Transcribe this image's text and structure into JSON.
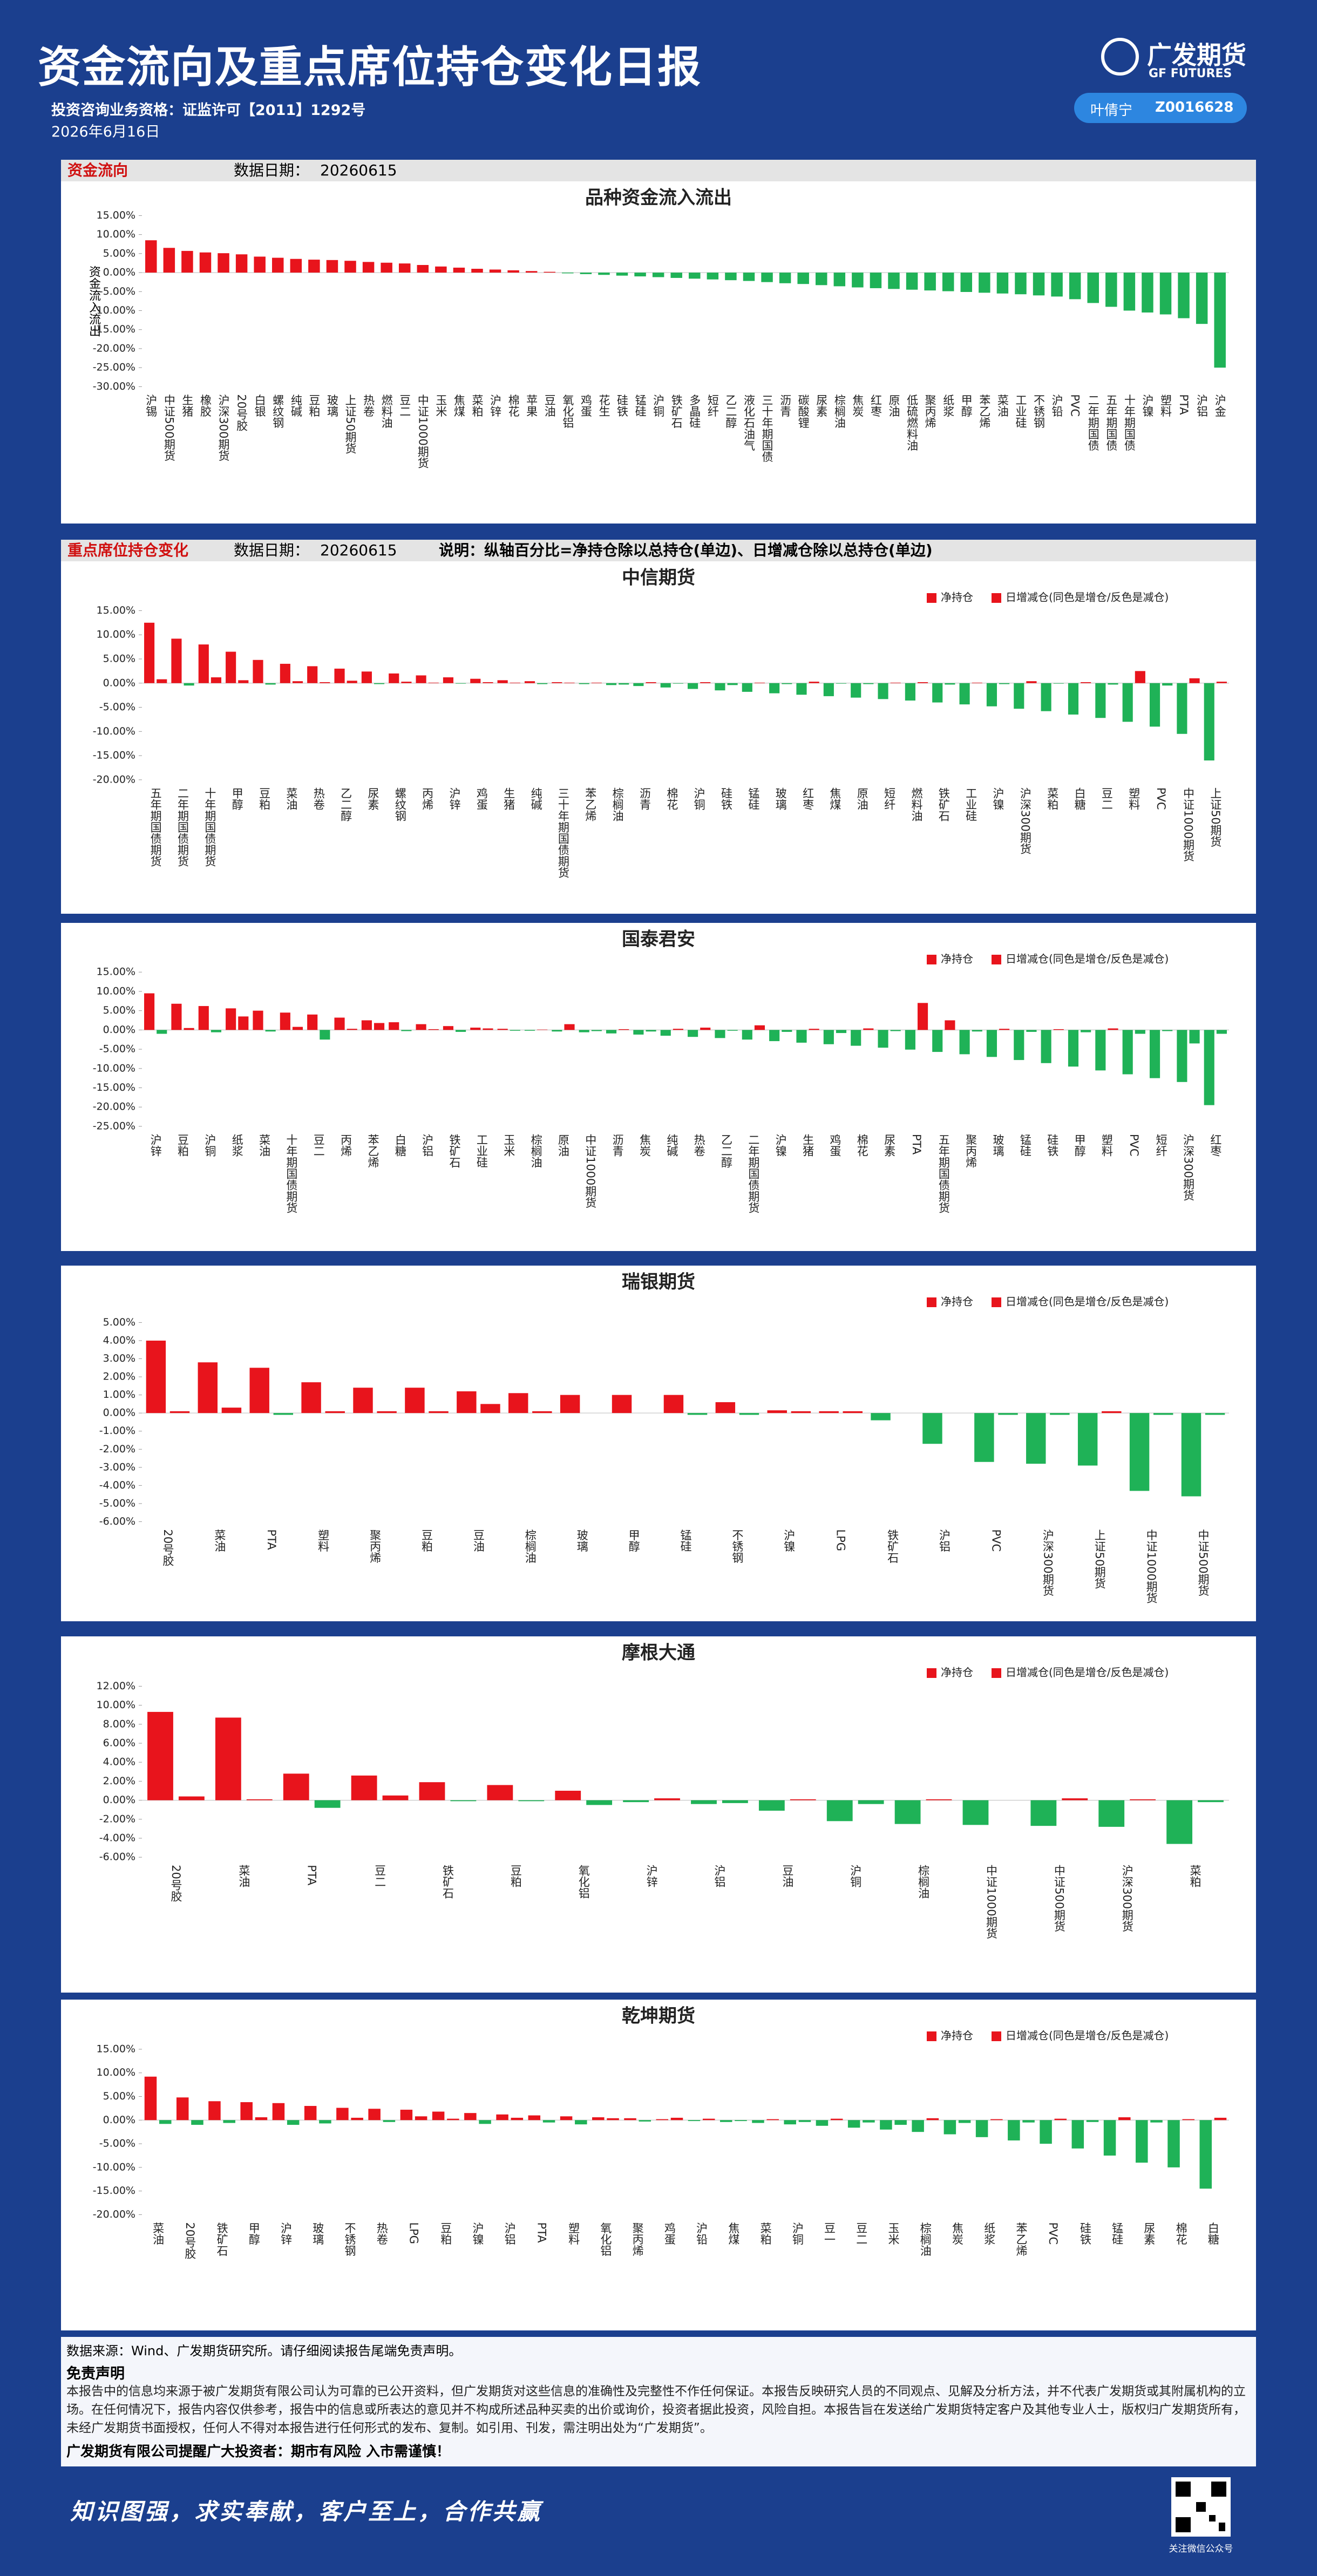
{
  "header": {
    "title": "资金流向及重点席位持仓变化日报",
    "license": "投资咨询业务资格：证监许可【2011】1292号",
    "date": "2026年6月16日",
    "logo_cn": "广发期货",
    "logo_en": "GF FUTURES",
    "analyst": "叶倩宁",
    "analyst_id": "Z0016628"
  },
  "sections": [
    {
      "heading": "资金流向",
      "date_label": "数据日期：",
      "date": "20260615"
    },
    {
      "heading": "重点席位持仓变化",
      "date_label": "数据日期：",
      "date": "20260615",
      "note": "说明：纵轴百分比=净持仓除以总持仓(单边)、日增减仓除以总持仓(单边)"
    }
  ],
  "chart_data": [
    {
      "type": "bar",
      "title": "品种资金流入流出",
      "ylabel": "资金流入流出",
      "categories": [
        "沪锡",
        "中证500期货",
        "生猪",
        "橡胶",
        "沪深300期货",
        "20号胶",
        "白银",
        "螺纹钢",
        "纯碱",
        "豆粕",
        "玻璃",
        "上证50期货",
        "热卷",
        "燃料油",
        "豆二",
        "中证1000期货",
        "玉米",
        "焦煤",
        "菜粕",
        "沪锌",
        "棉花",
        "苹果",
        "豆油",
        "氧化铝",
        "鸡蛋",
        "花生",
        "硅铁",
        "锰硅",
        "沪铜",
        "铁矿石",
        "多晶硅",
        "短纤",
        "乙二醇",
        "液化石油气",
        "三十年期国债",
        "沥青",
        "碳酸锂",
        "尿素",
        "棕榈油",
        "焦炭",
        "红枣",
        "原油",
        "低硫燃料油",
        "聚丙烯",
        "纸浆",
        "甲醇",
        "苯乙烯",
        "菜油",
        "工业硅",
        "不锈钢",
        "沪铅",
        "PVC",
        "二年期国债",
        "五年期国债",
        "十年期国债",
        "沪镍",
        "塑料",
        "PTA",
        "沪铝",
        "沪金"
      ],
      "values": [
        8.5,
        6.5,
        5.7,
        5.3,
        5.1,
        4.8,
        4.2,
        3.9,
        3.6,
        3.4,
        3.3,
        3.1,
        2.8,
        2.6,
        2.4,
        2.0,
        1.6,
        1.3,
        1.0,
        0.8,
        0.6,
        0.4,
        0.2,
        -0.2,
        -0.4,
        -0.6,
        -0.8,
        -1.0,
        -1.2,
        -1.4,
        -1.6,
        -1.8,
        -2.0,
        -2.2,
        -2.5,
        -2.8,
        -3.0,
        -3.3,
        -3.6,
        -3.9,
        -4.1,
        -4.3,
        -4.5,
        -4.7,
        -4.9,
        -5.1,
        -5.3,
        -5.5,
        -5.7,
        -6.0,
        -6.3,
        -7.0,
        -8.0,
        -9.0,
        -10.0,
        -10.5,
        -11.0,
        -12.0,
        -13.5,
        -25.0
      ],
      "ylim": [
        -30,
        15
      ],
      "yticks": [
        {
          "value": -30,
          "label": "-30.00%"
        },
        {
          "value": -25,
          "label": "-25.00%"
        },
        {
          "value": -20,
          "label": "-20.00%"
        },
        {
          "value": -15,
          "label": "-15.00%"
        },
        {
          "value": -10,
          "label": "-10.00%"
        },
        {
          "value": -5,
          "label": "-5.00%"
        },
        {
          "value": 0,
          "label": "0.00%"
        },
        {
          "value": 5,
          "label": "5.00%"
        },
        {
          "value": 10,
          "label": "10.00%"
        },
        {
          "value": 15,
          "label": "15.00%"
        }
      ],
      "grid": false,
      "color_positive": "#e8141c",
      "color_negative": "#1fb257"
    },
    {
      "type": "grouped_bar",
      "title": "中信期货",
      "legend": "top-right",
      "categories": [
        "五年期国债期货",
        "二年期国债期货",
        "十年期国债期货",
        "甲醇",
        "豆粕",
        "菜油",
        "热卷",
        "乙二醇",
        "尿素",
        "螺纹钢",
        "丙烯",
        "沪锌",
        "鸡蛋",
        "生猪",
        "纯碱",
        "三十年期国债期货",
        "苯乙烯",
        "棕榈油",
        "沥青",
        "棉花",
        "沪铜",
        "硅铁",
        "锰硅",
        "玻璃",
        "红枣",
        "焦煤",
        "原油",
        "短纤",
        "燃料油",
        "铁矿石",
        "工业硅",
        "沪镍",
        "沪深300期货",
        "菜粕",
        "白糖",
        "豆二",
        "塑料",
        "PVC",
        "中证1000期货",
        "上证50期货"
      ],
      "series": [
        {
          "name": "净持仓",
          "values": [
            12.5,
            9.2,
            8.0,
            6.5,
            4.8,
            4.0,
            3.5,
            3.0,
            2.4,
            2.0,
            1.6,
            1.2,
            0.9,
            0.6,
            0.4,
            0.2,
            -0.2,
            -0.4,
            -0.6,
            -0.9,
            -1.2,
            -1.5,
            -1.8,
            -2.1,
            -2.4,
            -2.7,
            -3.0,
            -3.3,
            -3.6,
            -4.0,
            -4.4,
            -4.8,
            -5.3,
            -5.8,
            -6.5,
            -7.2,
            -8.0,
            -9.0,
            -10.5,
            -16.0
          ]
        },
        {
          "name": "日增减仓(同色是增仓/反色是减仓)",
          "values": [
            0.8,
            -0.5,
            1.2,
            0.6,
            -0.3,
            0.4,
            0.2,
            0.5,
            -0.2,
            0.3,
            0.1,
            -0.1,
            0.2,
            0.1,
            -0.2,
            0.1,
            0.1,
            -0.3,
            0.2,
            -0.1,
            0.2,
            -0.4,
            0.1,
            -0.2,
            0.3,
            -0.1,
            -0.2,
            0.1,
            0.2,
            -0.3,
            0.1,
            -0.2,
            0.4,
            -0.1,
            0.2,
            -0.3,
            2.5,
            -0.5,
            1.0,
            0.3
          ]
        }
      ],
      "ylim": [
        -20,
        15
      ],
      "yticks": [
        {
          "value": -20,
          "label": "-20.00%"
        },
        {
          "value": -15,
          "label": "-15.00%"
        },
        {
          "value": -10,
          "label": "-10.00%"
        },
        {
          "value": -5,
          "label": "-5.00%"
        },
        {
          "value": 0,
          "label": "0.00%"
        },
        {
          "value": 5,
          "label": "5.00%"
        },
        {
          "value": 10,
          "label": "10.00%"
        },
        {
          "value": 15,
          "label": "15.00%"
        }
      ],
      "grid": false,
      "color_positive": "#e8141c",
      "color_negative": "#1fb257"
    },
    {
      "type": "grouped_bar",
      "title": "国泰君安",
      "legend": "top-right",
      "categories": [
        "沪锌",
        "豆粕",
        "沪铜",
        "纸浆",
        "菜油",
        "十年期国债期货",
        "豆二",
        "丙烯",
        "苯乙烯",
        "白糖",
        "沪铝",
        "铁矿石",
        "工业硅",
        "玉米",
        "棕榈油",
        "原油",
        "中证1000期货",
        "沥青",
        "焦炭",
        "纯碱",
        "热卷",
        "乙二醇",
        "二年期国债期货",
        "沪镍",
        "生猪",
        "鸡蛋",
        "棉花",
        "尿素",
        "PTA",
        "五年期国债期货",
        "聚丙烯",
        "玻璃",
        "锰硅",
        "硅铁",
        "甲醇",
        "塑料",
        "PVC",
        "短纤",
        "沪深300期货",
        "红枣"
      ],
      "series": [
        {
          "name": "净持仓",
          "values": [
            9.5,
            6.8,
            6.2,
            5.6,
            5.0,
            4.5,
            4.0,
            3.2,
            2.5,
            2.0,
            1.5,
            1.0,
            0.6,
            0.3,
            -0.2,
            -0.4,
            -0.6,
            -0.9,
            -1.2,
            -1.5,
            -1.8,
            -2.1,
            -2.5,
            -2.9,
            -3.3,
            -3.7,
            -4.1,
            -4.6,
            -5.1,
            -5.7,
            -6.3,
            -7.0,
            -7.8,
            -8.6,
            -9.5,
            -10.5,
            -11.5,
            -12.5,
            -13.5,
            -19.5
          ]
        },
        {
          "name": "日增减仓(同色是增仓/反色是减仓)",
          "values": [
            -1.0,
            0.5,
            -0.6,
            3.5,
            -0.4,
            0.8,
            -2.5,
            0.3,
            1.8,
            -0.3,
            0.2,
            -0.5,
            0.4,
            -0.2,
            0.1,
            1.5,
            -0.3,
            0.2,
            -0.4,
            0.3,
            0.6,
            -0.2,
            1.2,
            -0.5,
            0.3,
            -0.8,
            0.4,
            -0.3,
            7.0,
            2.5,
            -0.4,
            0.3,
            -0.5,
            0.2,
            -0.6,
            0.4,
            -1.0,
            -0.3,
            -3.5,
            -1.0
          ]
        }
      ],
      "ylim": [
        -25,
        15
      ],
      "yticks": [
        {
          "value": -25,
          "label": "-25.00%"
        },
        {
          "value": -20,
          "label": "-20.00%"
        },
        {
          "value": -15,
          "label": "-15.00%"
        },
        {
          "value": -10,
          "label": "-10.00%"
        },
        {
          "value": -5,
          "label": "-5.00%"
        },
        {
          "value": 0,
          "label": "0.00%"
        },
        {
          "value": 5,
          "label": "5.00%"
        },
        {
          "value": 10,
          "label": "10.00%"
        },
        {
          "value": 15,
          "label": "15.00%"
        }
      ],
      "grid": false,
      "color_positive": "#e8141c",
      "color_negative": "#1fb257"
    },
    {
      "type": "grouped_bar",
      "title": "瑞银期货",
      "legend": "top-right",
      "categories": [
        "20号胶",
        "菜油",
        "PTA",
        "塑料",
        "聚丙烯",
        "豆粕",
        "豆油",
        "棕榈油",
        "玻璃",
        "甲醇",
        "锰硅",
        "不锈钢",
        "沪镍",
        "LPG",
        "铁矿石",
        "沪铝",
        "PVC",
        "沪深300期货",
        "上证50期货",
        "中证1000期货",
        "中证500期货"
      ],
      "series": [
        {
          "name": "净持仓",
          "values": [
            4.0,
            2.8,
            2.5,
            1.7,
            1.4,
            1.4,
            1.2,
            1.1,
            1.0,
            1.0,
            1.0,
            0.6,
            0.15,
            0.1,
            -0.4,
            -1.7,
            -2.7,
            -2.8,
            -2.9,
            -4.3,
            -4.6
          ]
        },
        {
          "name": "日增减仓(同色是增仓/反色是减仓)",
          "values": [
            0.1,
            0.3,
            -0.1,
            0.1,
            0.1,
            0.1,
            0.5,
            0.1,
            0,
            0,
            -0.1,
            -0.1,
            0.1,
            0.1,
            0,
            0,
            -0.1,
            -0.1,
            0.1,
            -0.1,
            -0.1
          ]
        }
      ],
      "ylim": [
        -6,
        5
      ],
      "yticks": [
        {
          "value": -6,
          "label": "-6.00%"
        },
        {
          "value": -5,
          "label": "-5.00%"
        },
        {
          "value": -4,
          "label": "-4.00%"
        },
        {
          "value": -3,
          "label": "-3.00%"
        },
        {
          "value": -2,
          "label": "-2.00%"
        },
        {
          "value": -1,
          "label": "-1.00%"
        },
        {
          "value": 0,
          "label": "0.00%"
        },
        {
          "value": 1,
          "label": "1.00%"
        },
        {
          "value": 2,
          "label": "2.00%"
        },
        {
          "value": 3,
          "label": "3.00%"
        },
        {
          "value": 4,
          "label": "4.00%"
        },
        {
          "value": 5,
          "label": "5.00%"
        }
      ],
      "grid": false,
      "color_positive": "#e8141c",
      "color_negative": "#1fb257"
    },
    {
      "type": "grouped_bar",
      "title": "摩根大通",
      "legend": "top-right",
      "categories": [
        "20号胶",
        "菜油",
        "PTA",
        "豆二",
        "铁矿石",
        "豆粕",
        "氧化铝",
        "沪锌",
        "沪铝",
        "豆油",
        "沪铜",
        "棕榈油",
        "中证1000期货",
        "中证500期货",
        "沪深300期货",
        "菜粕"
      ],
      "series": [
        {
          "name": "净持仓",
          "values": [
            9.3,
            8.7,
            2.8,
            2.6,
            1.9,
            1.6,
            1.0,
            -0.2,
            -0.4,
            -1.1,
            -2.2,
            -2.5,
            -2.6,
            -2.7,
            -2.8,
            -4.6
          ]
        },
        {
          "name": "日增减仓(同色是增仓/反色是减仓)",
          "values": [
            0.4,
            0.1,
            -0.8,
            0.5,
            -0.1,
            -0.1,
            -0.5,
            0.2,
            -0.3,
            0.1,
            -0.4,
            0.1,
            0,
            0.2,
            0.1,
            -0.2
          ]
        }
      ],
      "ylim": [
        -6,
        12
      ],
      "yticks": [
        {
          "value": -6,
          "label": "-6.00%"
        },
        {
          "value": -4,
          "label": "-4.00%"
        },
        {
          "value": -2,
          "label": "-2.00%"
        },
        {
          "value": 0,
          "label": "0.00%"
        },
        {
          "value": 2,
          "label": "2.00%"
        },
        {
          "value": 4,
          "label": "4.00%"
        },
        {
          "value": 6,
          "label": "6.00%"
        },
        {
          "value": 8,
          "label": "8.00%"
        },
        {
          "value": 10,
          "label": "10.00%"
        },
        {
          "value": 12,
          "label": "12.00%"
        }
      ],
      "grid": false,
      "color_positive": "#e8141c",
      "color_negative": "#1fb257"
    },
    {
      "type": "grouped_bar",
      "title": "乾坤期货",
      "legend": "top-right",
      "categories": [
        "菜油",
        "20号胶",
        "铁矿石",
        "甲醇",
        "沪锌",
        "玻璃",
        "不锈钢",
        "热卷",
        "LPG",
        "豆粕",
        "沪镍",
        "沪铝",
        "PTA",
        "塑料",
        "氧化铝",
        "聚丙烯",
        "鸡蛋",
        "沪铅",
        "焦煤",
        "菜粕",
        "沪铜",
        "豆一",
        "豆二",
        "玉米",
        "棕榈油",
        "焦炭",
        "纸浆",
        "苯乙烯",
        "PVC",
        "硅铁",
        "锰硅",
        "尿素",
        "棉花",
        "白糖"
      ],
      "series": [
        {
          "name": "净持仓",
          "values": [
            9.2,
            4.8,
            4.0,
            3.8,
            3.6,
            3.0,
            2.6,
            2.4,
            2.2,
            1.8,
            1.5,
            1.2,
            1.0,
            0.8,
            0.6,
            0.4,
            0.2,
            -0.2,
            -0.4,
            -0.6,
            -0.9,
            -1.2,
            -1.6,
            -2.0,
            -2.5,
            -3.0,
            -3.6,
            -4.3,
            -5.0,
            -6.0,
            -7.5,
            -9.0,
            -10.0,
            -14.5
          ]
        },
        {
          "name": "日增减仓(同色是增仓/反色是减仓)",
          "values": [
            -0.8,
            -1.0,
            -0.6,
            0.6,
            -1.0,
            -0.7,
            0.5,
            -0.4,
            0.8,
            0.3,
            -0.8,
            0.5,
            -0.5,
            -0.9,
            0.4,
            -0.3,
            0.5,
            0.3,
            -0.2,
            0.2,
            -0.4,
            0.3,
            -0.5,
            -1.0,
            0.4,
            -0.6,
            0.2,
            -0.5,
            0.3,
            -0.4,
            0.6,
            -0.5,
            0.2,
            0.5
          ]
        }
      ],
      "ylim": [
        -20,
        15
      ],
      "yticks": [
        {
          "value": -20,
          "label": "-20.00%"
        },
        {
          "value": -15,
          "label": "-15.00%"
        },
        {
          "value": -10,
          "label": "-10.00%"
        },
        {
          "value": -5,
          "label": "-5.00%"
        },
        {
          "value": 0,
          "label": "0.00%"
        },
        {
          "value": 5,
          "label": "5.00%"
        },
        {
          "value": 10,
          "label": "10.00%"
        },
        {
          "value": 15,
          "label": "15.00%"
        }
      ],
      "grid": false,
      "color_positive": "#e8141c",
      "color_negative": "#1fb257"
    }
  ],
  "footer": {
    "source": "数据来源：Wind、广发期货研究所。请仔细阅读报告尾端免责声明。",
    "disclaimer_title": "免责声明",
    "disclaimer": "本报告中的信息均来源于被广发期货有限公司认为可靠的已公开资料，但广发期货对这些信息的准确性及完整性不作任何保证。本报告反映研究人员的不同观点、见解及分析方法，并不代表广发期货或其附属机构的立场。在任何情况下，报告内容仅供参考，报告中的信息或所表达的意见并不构成所述品种买卖的出价或询价，投资者据此投资，风险自担。本报告旨在发送给广发期货特定客户及其他专业人士，版权归广发期货所有，未经广发期货书面授权，任何人不得对本报告进行任何形式的发布、复制。如引用、刊发，需注明出处为“广发期货”。",
    "reminder": "广发期货有限公司提醒广大投资者：期市有风险 入市需谨慎！",
    "slogan": "知识图强，求实奉献，客户至上，合作共赢",
    "qr_caption": "关注微信公众号"
  }
}
